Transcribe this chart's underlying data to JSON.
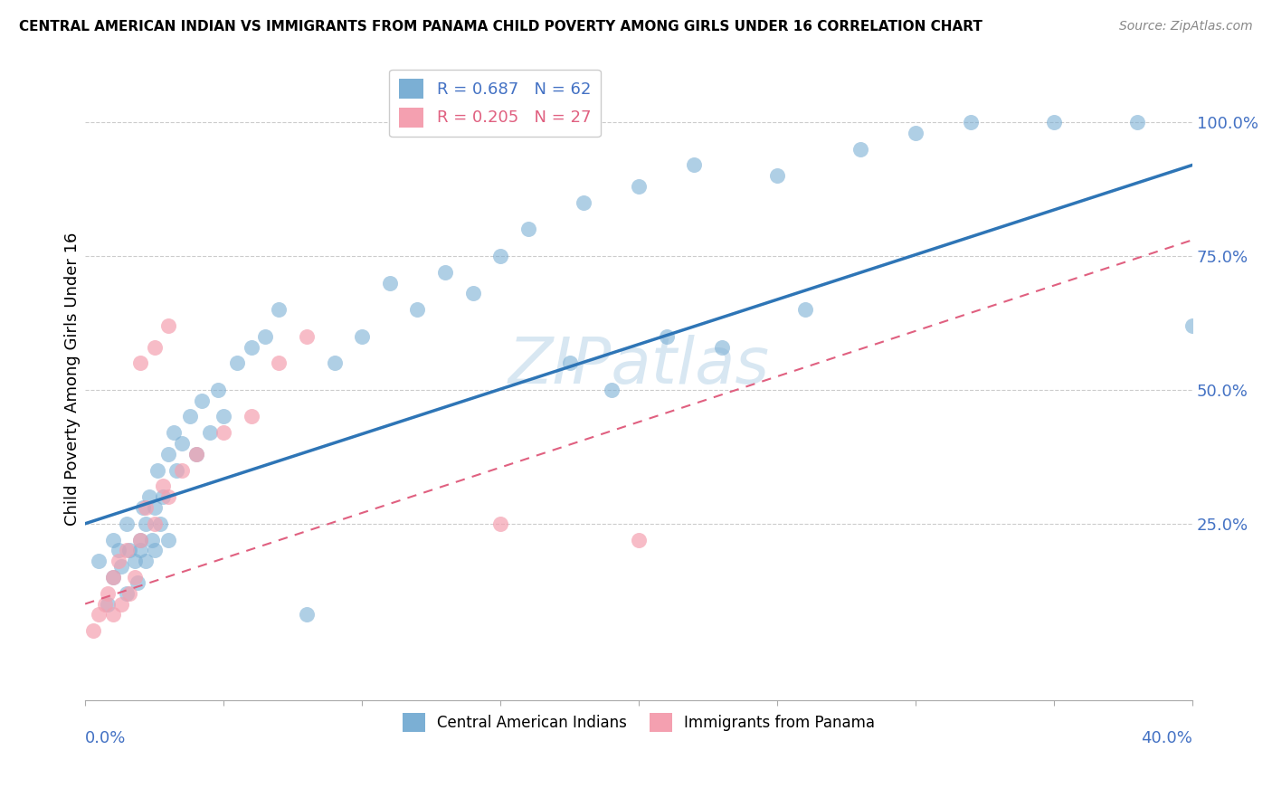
{
  "title": "CENTRAL AMERICAN INDIAN VS IMMIGRANTS FROM PANAMA CHILD POVERTY AMONG GIRLS UNDER 16 CORRELATION CHART",
  "source": "Source: ZipAtlas.com",
  "ylabel": "Child Poverty Among Girls Under 16",
  "yticks": [
    0.0,
    0.25,
    0.5,
    0.75,
    1.0
  ],
  "ytick_labels": [
    "",
    "25.0%",
    "50.0%",
    "75.0%",
    "100.0%"
  ],
  "xlim": [
    0.0,
    0.4
  ],
  "ylim": [
    -0.08,
    1.12
  ],
  "legend_entry1": "R = 0.687   N = 62",
  "legend_entry2": "R = 0.205   N = 27",
  "legend_label1": "Central American Indians",
  "legend_label2": "Immigrants from Panama",
  "color_blue": "#7BAFD4",
  "color_pink": "#F4A0B0",
  "watermark": "ZIPatlas",
  "blue_scatter_x": [
    0.005,
    0.008,
    0.01,
    0.01,
    0.012,
    0.013,
    0.015,
    0.015,
    0.016,
    0.018,
    0.019,
    0.02,
    0.02,
    0.021,
    0.022,
    0.022,
    0.023,
    0.024,
    0.025,
    0.025,
    0.026,
    0.027,
    0.028,
    0.03,
    0.03,
    0.032,
    0.033,
    0.035,
    0.038,
    0.04,
    0.042,
    0.045,
    0.048,
    0.05,
    0.055,
    0.06,
    0.065,
    0.07,
    0.08,
    0.09,
    0.1,
    0.11,
    0.12,
    0.13,
    0.14,
    0.15,
    0.16,
    0.18,
    0.2,
    0.22,
    0.25,
    0.28,
    0.3,
    0.32,
    0.35,
    0.38,
    0.4,
    0.175,
    0.19,
    0.21,
    0.23,
    0.26
  ],
  "blue_scatter_y": [
    0.18,
    0.1,
    0.22,
    0.15,
    0.2,
    0.17,
    0.25,
    0.12,
    0.2,
    0.18,
    0.14,
    0.22,
    0.2,
    0.28,
    0.25,
    0.18,
    0.3,
    0.22,
    0.28,
    0.2,
    0.35,
    0.25,
    0.3,
    0.38,
    0.22,
    0.42,
    0.35,
    0.4,
    0.45,
    0.38,
    0.48,
    0.42,
    0.5,
    0.45,
    0.55,
    0.58,
    0.6,
    0.65,
    0.08,
    0.55,
    0.6,
    0.7,
    0.65,
    0.72,
    0.68,
    0.75,
    0.8,
    0.85,
    0.88,
    0.92,
    0.9,
    0.95,
    0.98,
    1.0,
    1.0,
    1.0,
    0.62,
    0.55,
    0.5,
    0.6,
    0.58,
    0.65
  ],
  "pink_scatter_x": [
    0.003,
    0.005,
    0.007,
    0.008,
    0.01,
    0.01,
    0.012,
    0.013,
    0.015,
    0.016,
    0.018,
    0.02,
    0.022,
    0.025,
    0.028,
    0.03,
    0.035,
    0.04,
    0.05,
    0.06,
    0.07,
    0.08,
    0.02,
    0.025,
    0.03,
    0.15,
    0.2
  ],
  "pink_scatter_y": [
    0.05,
    0.08,
    0.1,
    0.12,
    0.15,
    0.08,
    0.18,
    0.1,
    0.2,
    0.12,
    0.15,
    0.22,
    0.28,
    0.25,
    0.32,
    0.3,
    0.35,
    0.38,
    0.42,
    0.45,
    0.55,
    0.6,
    0.55,
    0.58,
    0.62,
    0.25,
    0.22
  ],
  "blue_line_x": [
    0.0,
    0.4
  ],
  "blue_line_y": [
    0.25,
    0.92
  ],
  "pink_line_x": [
    0.0,
    0.4
  ],
  "pink_line_y": [
    0.1,
    0.78
  ]
}
